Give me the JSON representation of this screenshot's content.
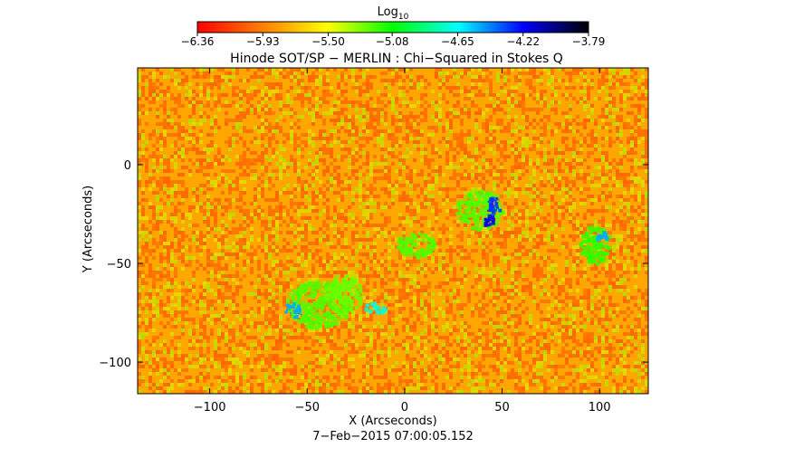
{
  "chart_data": {
    "type": "heatmap",
    "title": "Hinode SOT/SP − MERLIN : Chi−Squared in Stokes Q",
    "xlabel": "X (Arcseconds)",
    "ylabel": "Y (Arcseconds)",
    "footer": "7−Feb−2015 07:00:05.152",
    "xlim": [
      -137,
      125
    ],
    "ylim": [
      -116,
      49
    ],
    "x_ticks": [
      -100,
      -50,
      0,
      50,
      100
    ],
    "x_tick_labels": [
      "−100",
      "−50",
      "0",
      "50",
      "100"
    ],
    "y_ticks": [
      0,
      -50,
      -100
    ],
    "y_tick_labels": [
      "0",
      "−50",
      "−100"
    ],
    "colorbar": {
      "label": "Log",
      "label_sub": "10",
      "ticks": [
        -6.36,
        -5.93,
        -5.5,
        -5.08,
        -4.65,
        -4.22,
        -3.79
      ],
      "tick_labels": [
        "−6.36",
        "−5.93",
        "−5.50",
        "−5.08",
        "−4.65",
        "−4.22",
        "−3.79"
      ],
      "range": [
        -6.36,
        -3.79
      ],
      "colormap": [
        "#ff0000",
        "#ff7f00",
        "#ffff00",
        "#00ff00",
        "#00ffff",
        "#0000ff",
        "#000000"
      ]
    },
    "background_log_value": -5.8,
    "features": [
      {
        "x": -45,
        "y": -70,
        "rx": 16,
        "ry": 12,
        "log_value": -5.2
      },
      {
        "x": -32,
        "y": -65,
        "rx": 10,
        "ry": 10,
        "log_value": -5.25
      },
      {
        "x": -15,
        "y": -72,
        "rx": 6,
        "ry": 3,
        "log_value": -4.7
      },
      {
        "x": -58,
        "y": -73,
        "rx": 4,
        "ry": 4,
        "log_value": -4.5
      },
      {
        "x": 5,
        "y": -40,
        "rx": 10,
        "ry": 6,
        "log_value": -5.2
      },
      {
        "x": 38,
        "y": -22,
        "rx": 12,
        "ry": 10,
        "log_value": -5.2
      },
      {
        "x": 45,
        "y": -20,
        "rx": 4,
        "ry": 4,
        "log_value": -4.3
      },
      {
        "x": 42,
        "y": -28,
        "rx": 4,
        "ry": 3,
        "log_value": -4.2
      },
      {
        "x": 97,
        "y": -40,
        "rx": 8,
        "ry": 10,
        "log_value": -5.15
      },
      {
        "x": 100,
        "y": -36,
        "rx": 3,
        "ry": 3,
        "log_value": -4.5
      }
    ]
  }
}
